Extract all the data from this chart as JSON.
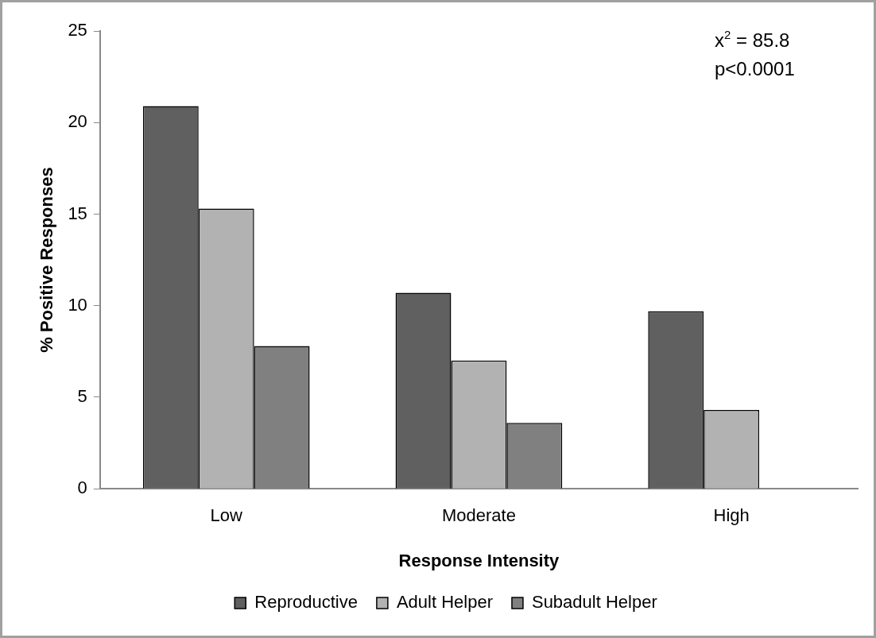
{
  "chart_data": {
    "type": "bar",
    "xlabel": "Response Intensity",
    "ylabel": "% Positive Responses",
    "categories": [
      "Low",
      "Moderate",
      "High"
    ],
    "series": [
      {
        "name": "Reproductive",
        "color": "#606060",
        "values": [
          20.9,
          10.7,
          9.7
        ]
      },
      {
        "name": "Adult Helper",
        "color": "#b2b2b2",
        "values": [
          15.3,
          7.0,
          4.3
        ]
      },
      {
        "name": "Subadult Helper",
        "color": "#808080",
        "values": [
          7.8,
          3.6,
          0
        ]
      }
    ],
    "ylim": [
      0,
      25
    ],
    "yticks": [
      0,
      5,
      10,
      15,
      20,
      25
    ],
    "grid": false,
    "legend": "bottom",
    "annotations": [
      "x$^{2}$ = 85.8",
      "p<0.0001"
    ]
  }
}
